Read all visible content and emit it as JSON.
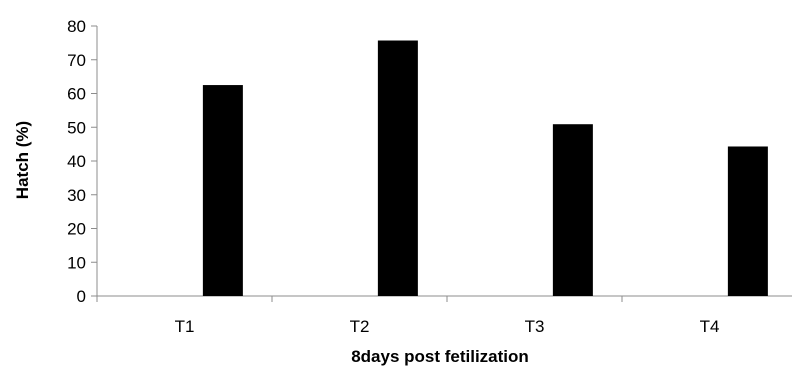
{
  "chart_data": {
    "type": "bar",
    "title": "",
    "xlabel": "8days post fetilization",
    "ylabel": "Hatch (%)",
    "categories": [
      "T1",
      "T2",
      "T3",
      "T4"
    ],
    "series": [
      {
        "name": "",
        "values": [
          62.5,
          75.7,
          50.9,
          44.3
        ],
        "color": "#000000"
      }
    ],
    "ylim": [
      0,
      80
    ],
    "yticks": [
      "0",
      "10",
      "20",
      "30",
      "40",
      "50",
      "60",
      "70",
      "80"
    ],
    "grid": false,
    "legend": "none"
  }
}
